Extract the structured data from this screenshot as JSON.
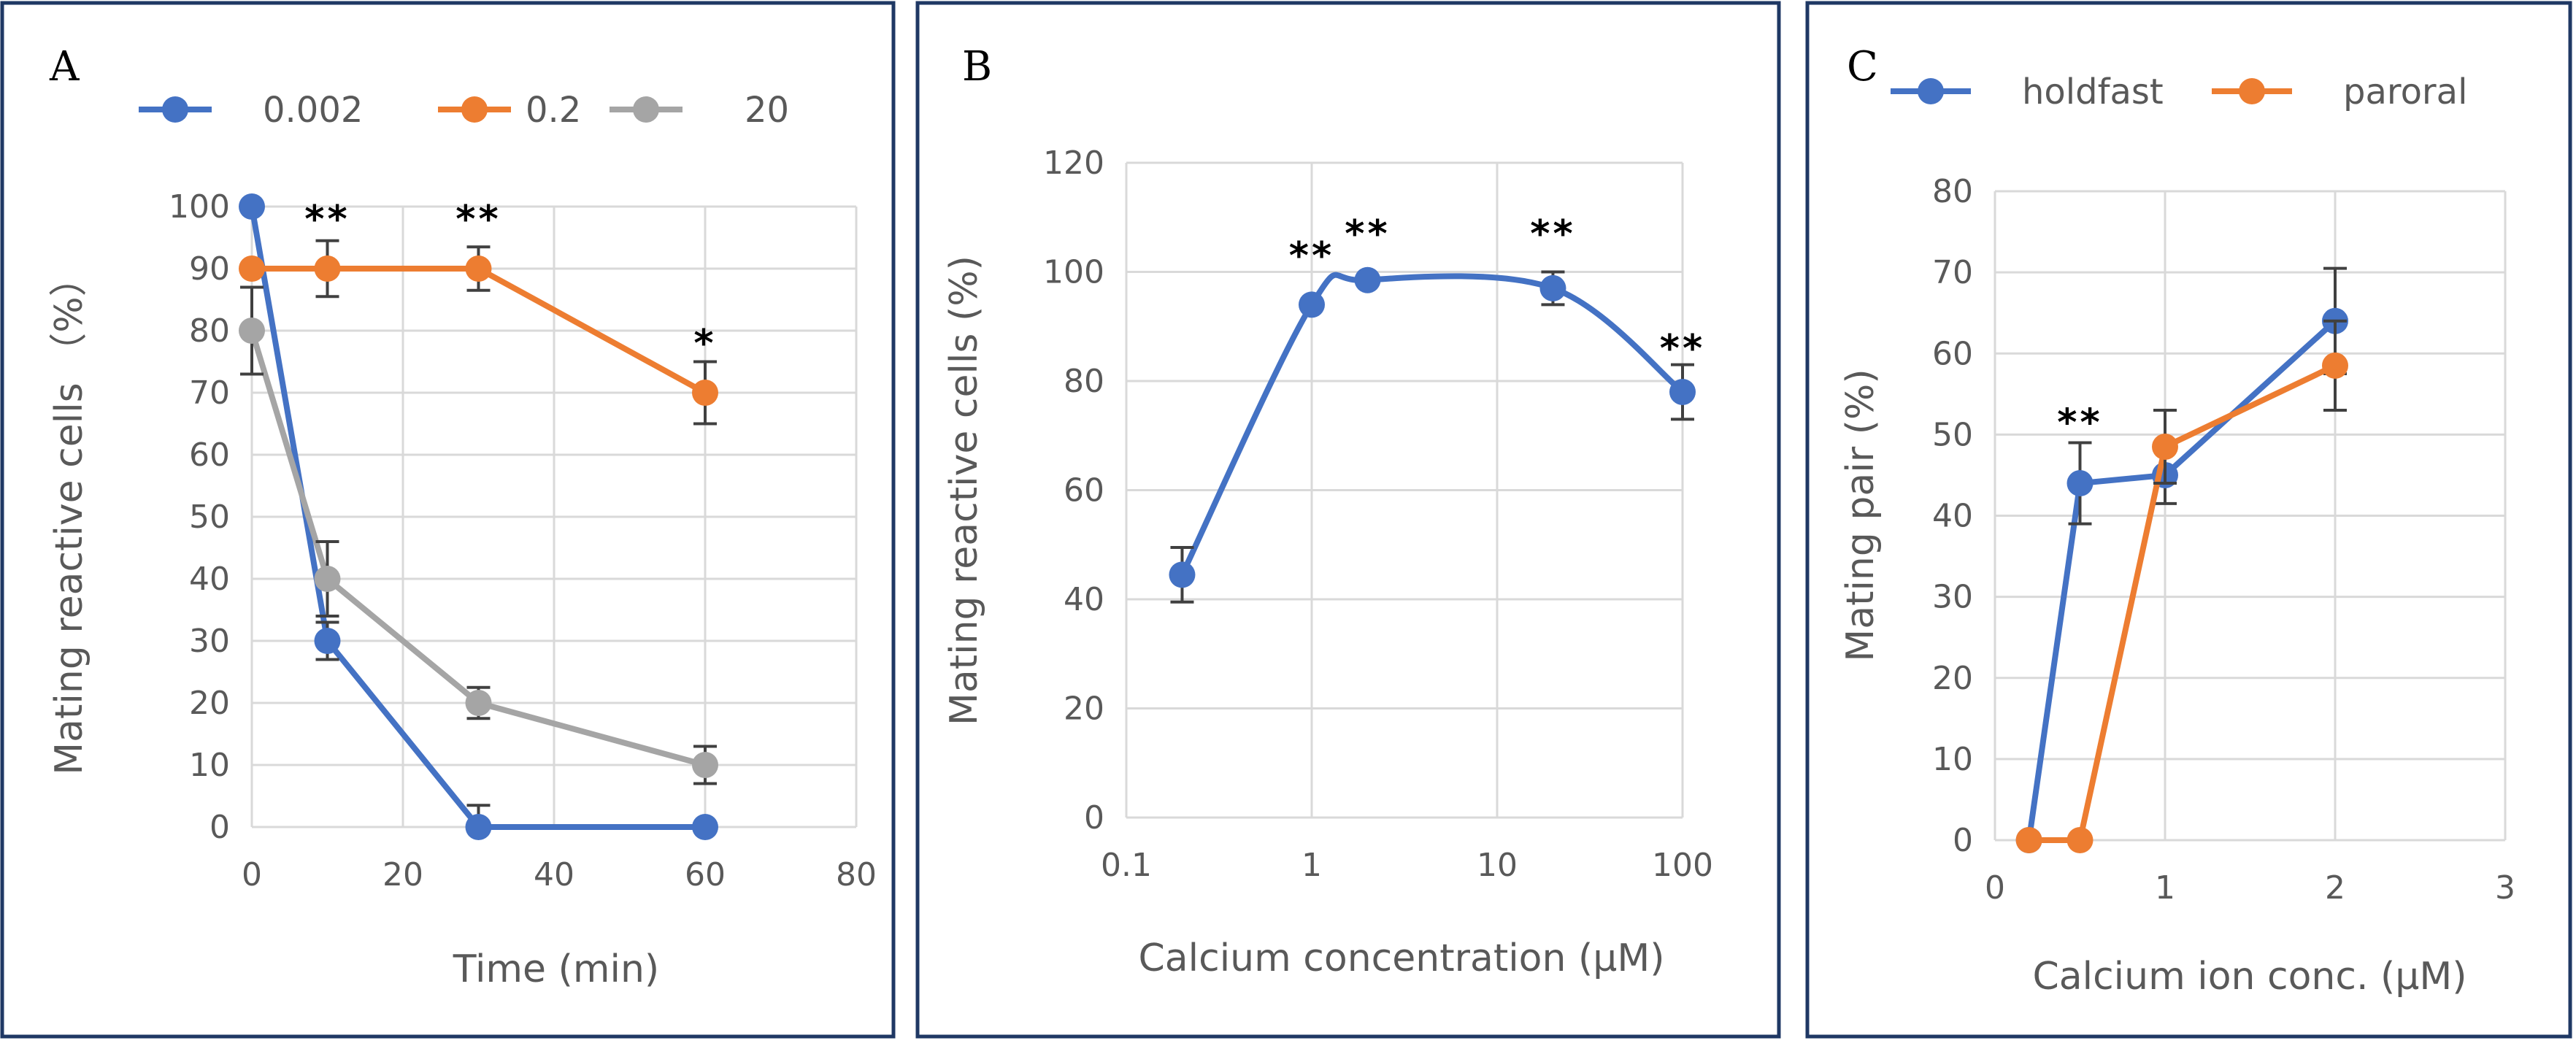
{
  "chart_data": [
    {
      "type": "line",
      "panel_label": "A",
      "title": "",
      "xlabel": "Time (min)",
      "ylabel": "Mating reactive cells （%）",
      "xlim": [
        0,
        80
      ],
      "ylim": [
        0,
        100
      ],
      "x_ticks": [
        0,
        20,
        40,
        60,
        80
      ],
      "y_ticks": [
        0,
        10,
        20,
        30,
        40,
        50,
        60,
        70,
        80,
        90,
        100
      ],
      "x_scale": "linear",
      "legend_position": "top",
      "smooth": false,
      "series": [
        {
          "name": "0.002",
          "color": "#4472c4",
          "x": [
            0,
            10,
            30,
            60
          ],
          "y": [
            100,
            30,
            0,
            0
          ],
          "err": [
            0,
            3,
            3.5,
            0
          ]
        },
        {
          "name": "0.2",
          "color": "#ed7d31",
          "x": [
            0,
            10,
            30,
            60
          ],
          "y": [
            90,
            90,
            90,
            70
          ],
          "err": [
            0,
            4.5,
            3.5,
            5
          ]
        },
        {
          "name": "20",
          "color": "#a5a5a5",
          "x": [
            0,
            10,
            30,
            60
          ],
          "y": [
            80,
            40,
            20,
            10
          ],
          "err": [
            7,
            6,
            2.5,
            3
          ]
        }
      ],
      "annotations": [
        {
          "text": "**",
          "x": 10,
          "y": 98
        },
        {
          "text": "**",
          "x": 30,
          "y": 98
        },
        {
          "text": "*",
          "x": 60,
          "y": 78
        }
      ]
    },
    {
      "type": "line",
      "panel_label": "B",
      "title": "",
      "xlabel": "Calcium concentration (μM)",
      "ylabel": "Mating reactive cells (%)",
      "xlim": [
        0.1,
        100
      ],
      "ylim": [
        0,
        120
      ],
      "x_ticks": [
        0.1,
        1,
        10,
        100
      ],
      "x_tick_labels": [
        "0.1",
        "1",
        "10",
        "100"
      ],
      "y_ticks": [
        0,
        20,
        40,
        60,
        80,
        100,
        120
      ],
      "x_scale": "log",
      "legend_position": "none",
      "smooth": true,
      "series": [
        {
          "name": "",
          "color": "#4472c4",
          "x": [
            0.2,
            1,
            2,
            20,
            100
          ],
          "y": [
            44.5,
            94,
            98.5,
            97,
            78
          ],
          "err": [
            5,
            0,
            0,
            3,
            5
          ]
        }
      ],
      "annotations": [
        {
          "text": "**",
          "x": 1,
          "y": 103
        },
        {
          "text": "**",
          "x": 2,
          "y": 107
        },
        {
          "text": "**",
          "x": 20,
          "y": 107
        },
        {
          "text": "**",
          "x": 100,
          "y": 86
        }
      ]
    },
    {
      "type": "line",
      "panel_label": "C",
      "title": "",
      "xlabel": "Calcium ion conc. (μM)",
      "ylabel": "Mating pair (%)",
      "xlim": [
        0,
        3
      ],
      "ylim": [
        0,
        80
      ],
      "x_ticks": [
        0,
        1,
        2,
        3
      ],
      "y_ticks": [
        0,
        10,
        20,
        30,
        40,
        50,
        60,
        70,
        80
      ],
      "x_scale": "linear",
      "legend_position": "top",
      "smooth": false,
      "series": [
        {
          "name": "holdfast",
          "color": "#4472c4",
          "x": [
            0.2,
            0.5,
            1,
            2
          ],
          "y": [
            0,
            44,
            45,
            64
          ],
          "err": [
            0,
            5,
            3.5,
            6.5
          ]
        },
        {
          "name": "paroral",
          "color": "#ed7d31",
          "x": [
            0.2,
            0.5,
            1,
            2
          ],
          "y": [
            0,
            0,
            48.5,
            58.5
          ],
          "err": [
            0,
            0,
            4.5,
            5.5
          ]
        }
      ],
      "annotations": [
        {
          "text": "**",
          "x": 0.5,
          "y": 51.5
        }
      ]
    }
  ]
}
